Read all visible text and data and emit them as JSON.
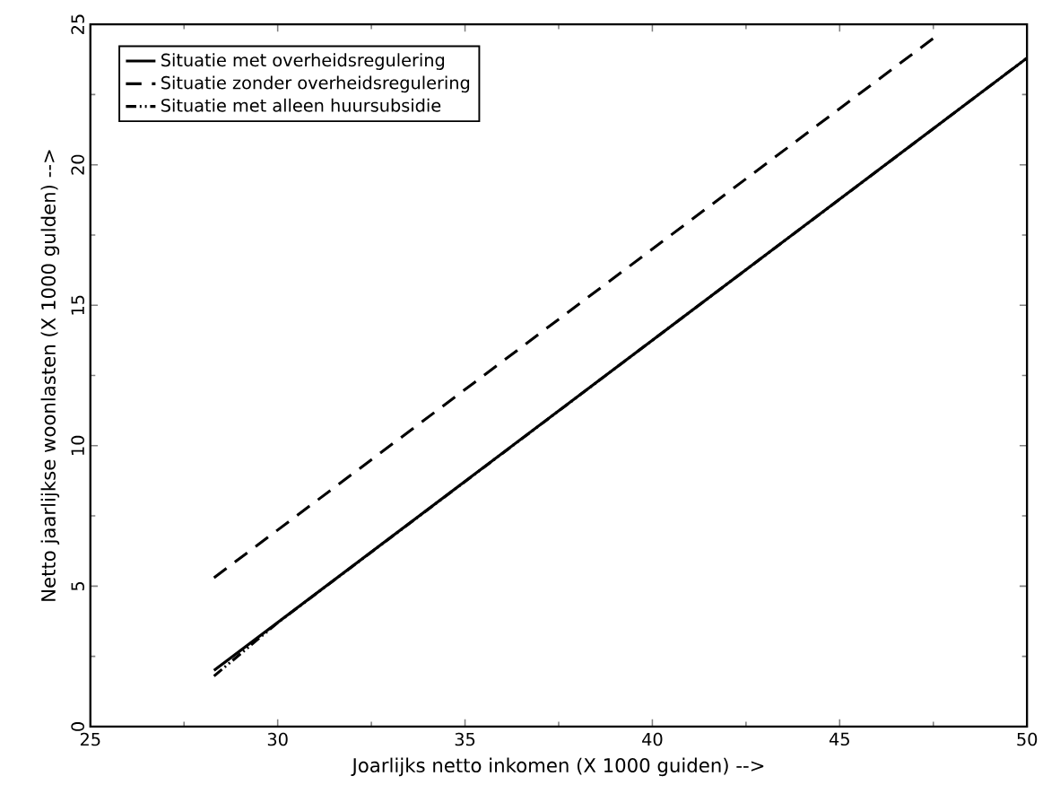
{
  "chart_data": {
    "type": "line",
    "xlabel": "Joarlijks netto inkomen (X 1000 guiden) -->",
    "ylabel": "Netto jaarlijkse woonlasten (X 1000 gulden) -->",
    "xlim": [
      25,
      50
    ],
    "ylim": [
      0,
      25
    ],
    "xticks": [
      25,
      30,
      35,
      40,
      45,
      50
    ],
    "yticks": [
      0,
      5,
      10,
      15,
      20,
      25
    ],
    "legend": "top left",
    "grid": false,
    "series": [
      {
        "name": "Situatie met overheidsregulering",
        "color": "#000000",
        "line_style": "solid",
        "x": [
          28.3,
          50
        ],
        "values": [
          2.0,
          23.8
        ]
      },
      {
        "name": "Situatie zonder overheidsregulering",
        "color": "#000000",
        "line_style": "dashed",
        "x": [
          28.3,
          47.6
        ],
        "values": [
          5.3,
          24.6
        ]
      },
      {
        "name": "Situatie met alleen huursubsidie",
        "color": "#000000",
        "line_style": "dashdotdotted",
        "x": [
          28.3,
          30,
          50
        ],
        "values": [
          1.8,
          3.7,
          23.8
        ]
      }
    ]
  }
}
